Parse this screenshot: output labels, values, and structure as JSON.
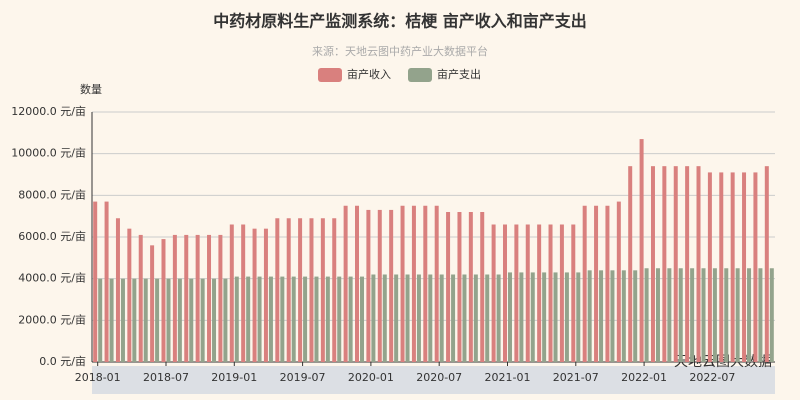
{
  "chart_data": {
    "type": "bar",
    "title": "中药材原料生产监测系统：桔梗 亩产收入和亩产支出",
    "subtitle": "来源：天地云图中药产业大数据平台",
    "y_axis_label": "数量",
    "watermark": "天地云图大数据",
    "categories": [
      "2018-01",
      null,
      null,
      null,
      null,
      null,
      "2018-07",
      null,
      null,
      null,
      null,
      null,
      "2019-01",
      null,
      null,
      null,
      null,
      null,
      "2019-07",
      null,
      null,
      null,
      null,
      null,
      "2020-01",
      null,
      null,
      null,
      null,
      null,
      "2020-07",
      null,
      null,
      null,
      null,
      null,
      "2021-01",
      null,
      null,
      null,
      null,
      null,
      "2021-07",
      null,
      null,
      null,
      null,
      null,
      "2022-01",
      null,
      null,
      null,
      null,
      null,
      "2022-07",
      null,
      null,
      null,
      null,
      null
    ],
    "series": [
      {
        "name": "亩产收入",
        "color": "#d9807e",
        "values": [
          7700,
          7700,
          6900,
          6400,
          6100,
          5600,
          5900,
          6100,
          6100,
          6100,
          6100,
          6100,
          6600,
          6600,
          6400,
          6400,
          6900,
          6900,
          6900,
          6900,
          6900,
          6900,
          7500,
          7500,
          7300,
          7300,
          7300,
          7500,
          7500,
          7500,
          7500,
          7200,
          7200,
          7200,
          7200,
          6600,
          6600,
          6600,
          6600,
          6600,
          6600,
          6600,
          6600,
          7500,
          7500,
          7500,
          7700,
          9400,
          10700,
          9400,
          9400,
          9400,
          9400,
          9400,
          9100,
          9100,
          9100,
          9100,
          9100,
          9400
        ]
      },
      {
        "name": "亩产支出",
        "color": "#93a38c",
        "values": [
          4000,
          4000,
          4000,
          4000,
          4000,
          4000,
          4000,
          4000,
          4000,
          4000,
          4000,
          4000,
          4100,
          4100,
          4100,
          4100,
          4100,
          4100,
          4100,
          4100,
          4100,
          4100,
          4100,
          4100,
          4200,
          4200,
          4200,
          4200,
          4200,
          4200,
          4200,
          4200,
          4200,
          4200,
          4200,
          4200,
          4300,
          4300,
          4300,
          4300,
          4300,
          4300,
          4300,
          4400,
          4400,
          4400,
          4400,
          4400,
          4500,
          4500,
          4500,
          4500,
          4500,
          4500,
          4500,
          4500,
          4500,
          4500,
          4500,
          4500
        ]
      }
    ],
    "ylim": [
      0,
      12000
    ],
    "yticks": [
      {
        "value": 0,
        "label": "0.0 元/亩"
      },
      {
        "value": 2000,
        "label": "2000.0 元/亩"
      },
      {
        "value": 4000,
        "label": "4000.0 元/亩"
      },
      {
        "value": 6000,
        "label": "6000.0 元/亩"
      },
      {
        "value": 8000,
        "label": "8000.0 元/亩"
      },
      {
        "value": 10000,
        "label": "10000.0 元/亩"
      },
      {
        "value": 12000,
        "label": "12000.0 元/亩"
      }
    ],
    "grid": true,
    "legend": "top"
  }
}
